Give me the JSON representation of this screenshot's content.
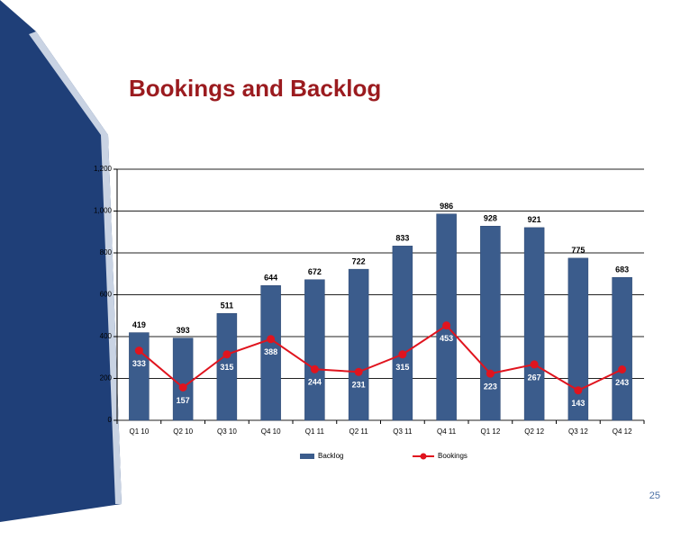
{
  "chart_data": {
    "type": "bar-line",
    "title": "Bookings and Backlog",
    "categories": [
      "Q1 10",
      "Q2 10",
      "Q3 10",
      "Q4 10",
      "Q1 11",
      "Q2 11",
      "Q3 11",
      "Q4 11",
      "Q1 12",
      "Q2 12",
      "Q3 12",
      "Q4 12"
    ],
    "series": [
      {
        "name": "Backlog",
        "type": "bar",
        "color": "#3b5c8c",
        "values": [
          419,
          393,
          511,
          644,
          672,
          722,
          833,
          986,
          928,
          921,
          775,
          683
        ]
      },
      {
        "name": "Bookings",
        "type": "line",
        "color": "#e0141e",
        "values": [
          333,
          157,
          315,
          388,
          244,
          231,
          315,
          453,
          223,
          267,
          143,
          243
        ]
      }
    ],
    "ylim": [
      0,
      1200
    ],
    "yticks": [
      0,
      200,
      400,
      600,
      800,
      {
        "value": 1000,
        "label": "1,000"
      },
      {
        "value": 1200,
        "label": "1,200"
      }
    ],
    "grid": true,
    "legend": "bottom",
    "page_number": "25"
  }
}
